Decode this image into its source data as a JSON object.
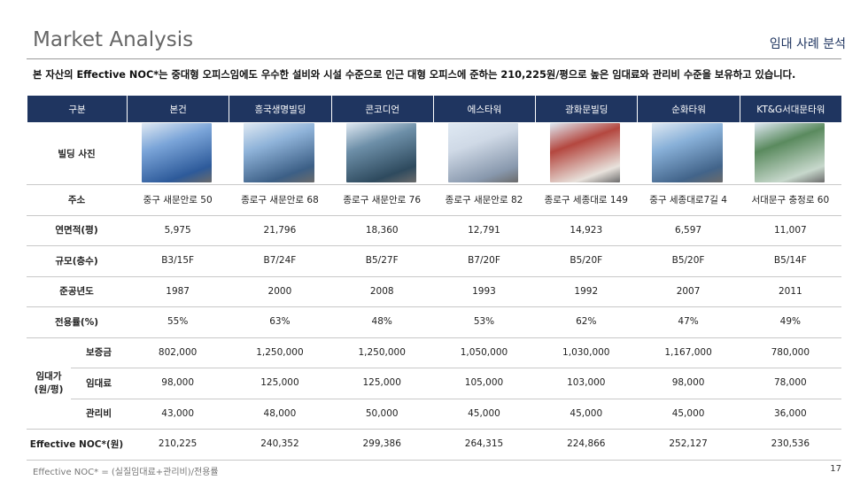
{
  "header": {
    "title": "Market Analysis",
    "section": "임대 사례 분석"
  },
  "summary": "본 자산의 Effective NOC*는 중대형 오피스임에도 우수한 설비와 시설 수준으로 인근 대형 오피스에 준하는 210,225원/평으로 높은 임대료와 관리비 수준을 보유하고 있습니다.",
  "table": {
    "columns": [
      "구분",
      "본건",
      "흥국생명빌딩",
      "콘코디언",
      "에스타워",
      "광화문빌딩",
      "순화타워",
      "KT&G서대문타워"
    ],
    "rows": [
      {
        "label": "빌딩 사진"
      },
      {
        "label": "주소",
        "cells": [
          "중구 새문안로 50",
          "종로구 새문안로 68",
          "종로구 새문안로 76",
          "종로구 새문안로 82",
          "종로구 세종대로 149",
          "중구 세종대로7길 4",
          "서대문구 충정로 60"
        ]
      },
      {
        "label": "연면적(평)",
        "cells": [
          "5,975",
          "21,796",
          "18,360",
          "12,791",
          "14,923",
          "6,597",
          "11,007"
        ]
      },
      {
        "label": "규모(층수)",
        "cells": [
          "B3/15F",
          "B7/24F",
          "B5/27F",
          "B7/20F",
          "B5/20F",
          "B5/20F",
          "B5/14F"
        ]
      },
      {
        "label": "준공년도",
        "cells": [
          "1987",
          "2000",
          "2008",
          "1993",
          "1992",
          "2007",
          "2011"
        ]
      },
      {
        "label": "전용률(%)",
        "cells": [
          "55%",
          "63%",
          "48%",
          "53%",
          "62%",
          "47%",
          "49%"
        ]
      },
      {
        "group": [
          "임대가",
          "(원/평)"
        ],
        "rows": [
          {
            "label": "보증금",
            "cells": [
              "802,000",
              "1,250,000",
              "1,250,000",
              "1,050,000",
              "1,030,000",
              "1,167,000",
              "780,000"
            ]
          },
          {
            "label": "임대료",
            "cells": [
              "98,000",
              "125,000",
              "125,000",
              "105,000",
              "103,000",
              "98,000",
              "78,000"
            ]
          },
          {
            "label": "관리비",
            "cells": [
              "43,000",
              "48,000",
              "50,000",
              "45,000",
              "45,000",
              "45,000",
              "36,000"
            ]
          }
        ]
      },
      {
        "label": "Effective NOC*(원)",
        "cells": [
          "210,225",
          "240,352",
          "299,386",
          "264,315",
          "224,866",
          "252,127",
          "230,536"
        ]
      }
    ]
  },
  "footnote": "Effective NOC* = (실질임대료+관리비)/전용률",
  "page_number": "17"
}
